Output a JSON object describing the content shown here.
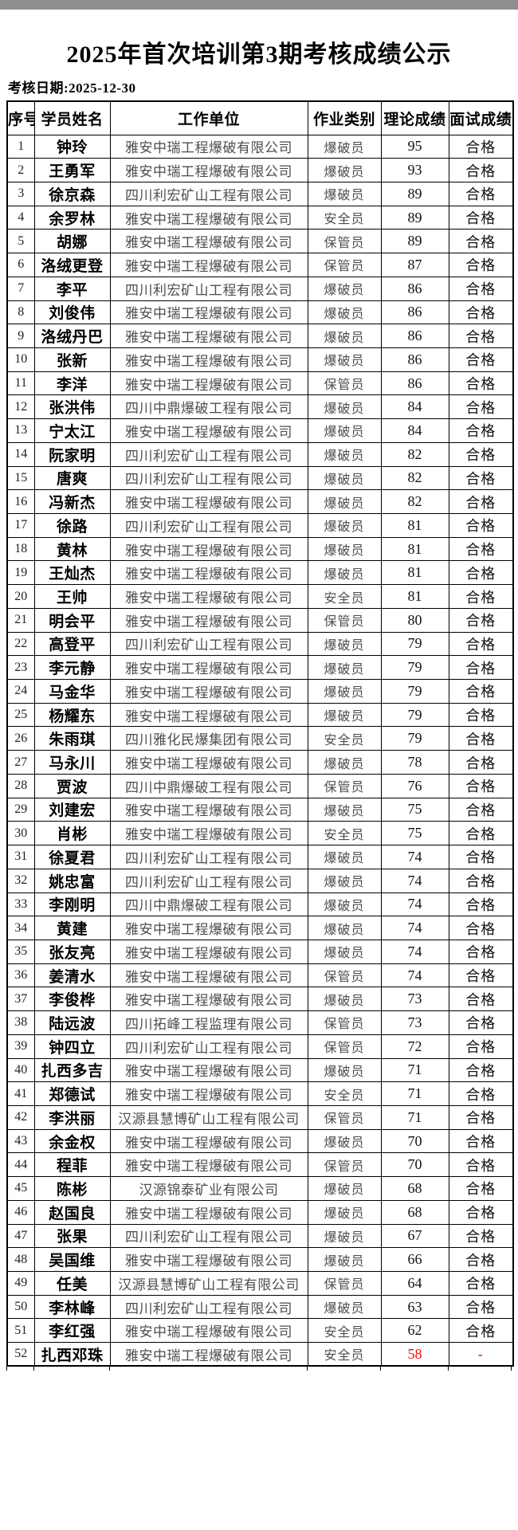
{
  "page": {
    "title": "2025年首次培训第3期考核成绩公示",
    "date_label": "考核日期:2025-12-30"
  },
  "colors": {
    "fail_text": "#ff0000",
    "table_border": "#000000",
    "top_strip": "#8e8e8e"
  },
  "table": {
    "headers": [
      "序号",
      "学员姓名",
      "工作单位",
      "作业类别",
      "理论成绩",
      "面试成绩"
    ],
    "rows": [
      {
        "no": "1",
        "name": "钟玲",
        "company": "雅安中瑞工程爆破有限公司",
        "category": "爆破员",
        "score": "95",
        "result": "合格",
        "fail": false
      },
      {
        "no": "2",
        "name": "王勇军",
        "company": "雅安中瑞工程爆破有限公司",
        "category": "爆破员",
        "score": "93",
        "result": "合格",
        "fail": false
      },
      {
        "no": "3",
        "name": "徐京森",
        "company": "四川利宏矿山工程有限公司",
        "category": "爆破员",
        "score": "89",
        "result": "合格",
        "fail": false
      },
      {
        "no": "4",
        "name": "余罗林",
        "company": "雅安中瑞工程爆破有限公司",
        "category": "安全员",
        "score": "89",
        "result": "合格",
        "fail": false
      },
      {
        "no": "5",
        "name": "胡娜",
        "company": "雅安中瑞工程爆破有限公司",
        "category": "保管员",
        "score": "89",
        "result": "合格",
        "fail": false
      },
      {
        "no": "6",
        "name": "洛绒更登",
        "company": "雅安中瑞工程爆破有限公司",
        "category": "保管员",
        "score": "87",
        "result": "合格",
        "fail": false
      },
      {
        "no": "7",
        "name": "李平",
        "company": "四川利宏矿山工程有限公司",
        "category": "爆破员",
        "score": "86",
        "result": "合格",
        "fail": false
      },
      {
        "no": "8",
        "name": "刘俊伟",
        "company": "雅安中瑞工程爆破有限公司",
        "category": "爆破员",
        "score": "86",
        "result": "合格",
        "fail": false
      },
      {
        "no": "9",
        "name": "洛绒丹巴",
        "company": "雅安中瑞工程爆破有限公司",
        "category": "爆破员",
        "score": "86",
        "result": "合格",
        "fail": false
      },
      {
        "no": "10",
        "name": "张新",
        "company": "雅安中瑞工程爆破有限公司",
        "category": "爆破员",
        "score": "86",
        "result": "合格",
        "fail": false
      },
      {
        "no": "11",
        "name": "李洋",
        "company": "雅安中瑞工程爆破有限公司",
        "category": "保管员",
        "score": "86",
        "result": "合格",
        "fail": false
      },
      {
        "no": "12",
        "name": "张洪伟",
        "company": "四川中鼎爆破工程有限公司",
        "category": "爆破员",
        "score": "84",
        "result": "合格",
        "fail": false
      },
      {
        "no": "13",
        "name": "宁太江",
        "company": "雅安中瑞工程爆破有限公司",
        "category": "爆破员",
        "score": "84",
        "result": "合格",
        "fail": false
      },
      {
        "no": "14",
        "name": "阮家明",
        "company": "四川利宏矿山工程有限公司",
        "category": "爆破员",
        "score": "82",
        "result": "合格",
        "fail": false
      },
      {
        "no": "15",
        "name": "唐爽",
        "company": "四川利宏矿山工程有限公司",
        "category": "爆破员",
        "score": "82",
        "result": "合格",
        "fail": false
      },
      {
        "no": "16",
        "name": "冯新杰",
        "company": "雅安中瑞工程爆破有限公司",
        "category": "爆破员",
        "score": "82",
        "result": "合格",
        "fail": false
      },
      {
        "no": "17",
        "name": "徐路",
        "company": "四川利宏矿山工程有限公司",
        "category": "爆破员",
        "score": "81",
        "result": "合格",
        "fail": false
      },
      {
        "no": "18",
        "name": "黄林",
        "company": "雅安中瑞工程爆破有限公司",
        "category": "爆破员",
        "score": "81",
        "result": "合格",
        "fail": false
      },
      {
        "no": "19",
        "name": "王灿杰",
        "company": "雅安中瑞工程爆破有限公司",
        "category": "爆破员",
        "score": "81",
        "result": "合格",
        "fail": false
      },
      {
        "no": "20",
        "name": "王帅",
        "company": "雅安中瑞工程爆破有限公司",
        "category": "安全员",
        "score": "81",
        "result": "合格",
        "fail": false
      },
      {
        "no": "21",
        "name": "明会平",
        "company": "雅安中瑞工程爆破有限公司",
        "category": "保管员",
        "score": "80",
        "result": "合格",
        "fail": false
      },
      {
        "no": "22",
        "name": "高登平",
        "company": "四川利宏矿山工程有限公司",
        "category": "爆破员",
        "score": "79",
        "result": "合格",
        "fail": false
      },
      {
        "no": "23",
        "name": "李元静",
        "company": "雅安中瑞工程爆破有限公司",
        "category": "爆破员",
        "score": "79",
        "result": "合格",
        "fail": false
      },
      {
        "no": "24",
        "name": "马金华",
        "company": "雅安中瑞工程爆破有限公司",
        "category": "爆破员",
        "score": "79",
        "result": "合格",
        "fail": false
      },
      {
        "no": "25",
        "name": "杨耀东",
        "company": "雅安中瑞工程爆破有限公司",
        "category": "爆破员",
        "score": "79",
        "result": "合格",
        "fail": false
      },
      {
        "no": "26",
        "name": "朱雨琪",
        "company": "四川雅化民爆集团有限公司",
        "category": "安全员",
        "score": "79",
        "result": "合格",
        "fail": false
      },
      {
        "no": "27",
        "name": "马永川",
        "company": "雅安中瑞工程爆破有限公司",
        "category": "爆破员",
        "score": "78",
        "result": "合格",
        "fail": false
      },
      {
        "no": "28",
        "name": "贾波",
        "company": "四川中鼎爆破工程有限公司",
        "category": "保管员",
        "score": "76",
        "result": "合格",
        "fail": false
      },
      {
        "no": "29",
        "name": "刘建宏",
        "company": "雅安中瑞工程爆破有限公司",
        "category": "爆破员",
        "score": "75",
        "result": "合格",
        "fail": false
      },
      {
        "no": "30",
        "name": "肖彬",
        "company": "雅安中瑞工程爆破有限公司",
        "category": "安全员",
        "score": "75",
        "result": "合格",
        "fail": false
      },
      {
        "no": "31",
        "name": "徐夏君",
        "company": "四川利宏矿山工程有限公司",
        "category": "爆破员",
        "score": "74",
        "result": "合格",
        "fail": false
      },
      {
        "no": "32",
        "name": "姚忠富",
        "company": "四川利宏矿山工程有限公司",
        "category": "爆破员",
        "score": "74",
        "result": "合格",
        "fail": false
      },
      {
        "no": "33",
        "name": "李刚明",
        "company": "四川中鼎爆破工程有限公司",
        "category": "爆破员",
        "score": "74",
        "result": "合格",
        "fail": false
      },
      {
        "no": "34",
        "name": "黄建",
        "company": "雅安中瑞工程爆破有限公司",
        "category": "爆破员",
        "score": "74",
        "result": "合格",
        "fail": false
      },
      {
        "no": "35",
        "name": "张友亮",
        "company": "雅安中瑞工程爆破有限公司",
        "category": "爆破员",
        "score": "74",
        "result": "合格",
        "fail": false
      },
      {
        "no": "36",
        "name": "姜清水",
        "company": "雅安中瑞工程爆破有限公司",
        "category": "保管员",
        "score": "74",
        "result": "合格",
        "fail": false
      },
      {
        "no": "37",
        "name": "李俊桦",
        "company": "雅安中瑞工程爆破有限公司",
        "category": "爆破员",
        "score": "73",
        "result": "合格",
        "fail": false
      },
      {
        "no": "38",
        "name": "陆远波",
        "company": "四川拓峰工程监理有限公司",
        "category": "保管员",
        "score": "73",
        "result": "合格",
        "fail": false
      },
      {
        "no": "39",
        "name": "钟四立",
        "company": "四川利宏矿山工程有限公司",
        "category": "保管员",
        "score": "72",
        "result": "合格",
        "fail": false
      },
      {
        "no": "40",
        "name": "扎西多吉",
        "company": "雅安中瑞工程爆破有限公司",
        "category": "爆破员",
        "score": "71",
        "result": "合格",
        "fail": false
      },
      {
        "no": "41",
        "name": "郑德试",
        "company": "雅安中瑞工程爆破有限公司",
        "category": "安全员",
        "score": "71",
        "result": "合格",
        "fail": false
      },
      {
        "no": "42",
        "name": "李洪丽",
        "company": "汉源县慧博矿山工程有限公司",
        "category": "保管员",
        "score": "71",
        "result": "合格",
        "fail": false
      },
      {
        "no": "43",
        "name": "余金权",
        "company": "雅安中瑞工程爆破有限公司",
        "category": "爆破员",
        "score": "70",
        "result": "合格",
        "fail": false
      },
      {
        "no": "44",
        "name": "程菲",
        "company": "雅安中瑞工程爆破有限公司",
        "category": "保管员",
        "score": "70",
        "result": "合格",
        "fail": false
      },
      {
        "no": "45",
        "name": "陈彬",
        "company": "汉源锦泰矿业有限公司",
        "category": "爆破员",
        "score": "68",
        "result": "合格",
        "fail": false
      },
      {
        "no": "46",
        "name": "赵国良",
        "company": "雅安中瑞工程爆破有限公司",
        "category": "爆破员",
        "score": "68",
        "result": "合格",
        "fail": false
      },
      {
        "no": "47",
        "name": "张果",
        "company": "四川利宏矿山工程有限公司",
        "category": "爆破员",
        "score": "67",
        "result": "合格",
        "fail": false
      },
      {
        "no": "48",
        "name": "吴国维",
        "company": "雅安中瑞工程爆破有限公司",
        "category": "爆破员",
        "score": "66",
        "result": "合格",
        "fail": false
      },
      {
        "no": "49",
        "name": "任美",
        "company": "汉源县慧博矿山工程有限公司",
        "category": "保管员",
        "score": "64",
        "result": "合格",
        "fail": false
      },
      {
        "no": "50",
        "name": "李林峰",
        "company": "四川利宏矿山工程有限公司",
        "category": "爆破员",
        "score": "63",
        "result": "合格",
        "fail": false
      },
      {
        "no": "51",
        "name": "李红强",
        "company": "雅安中瑞工程爆破有限公司",
        "category": "安全员",
        "score": "62",
        "result": "合格",
        "fail": false
      },
      {
        "no": "52",
        "name": "扎西邓珠",
        "company": "雅安中瑞工程爆破有限公司",
        "category": "安全员",
        "score": "58",
        "result": "-",
        "fail": true
      }
    ]
  }
}
